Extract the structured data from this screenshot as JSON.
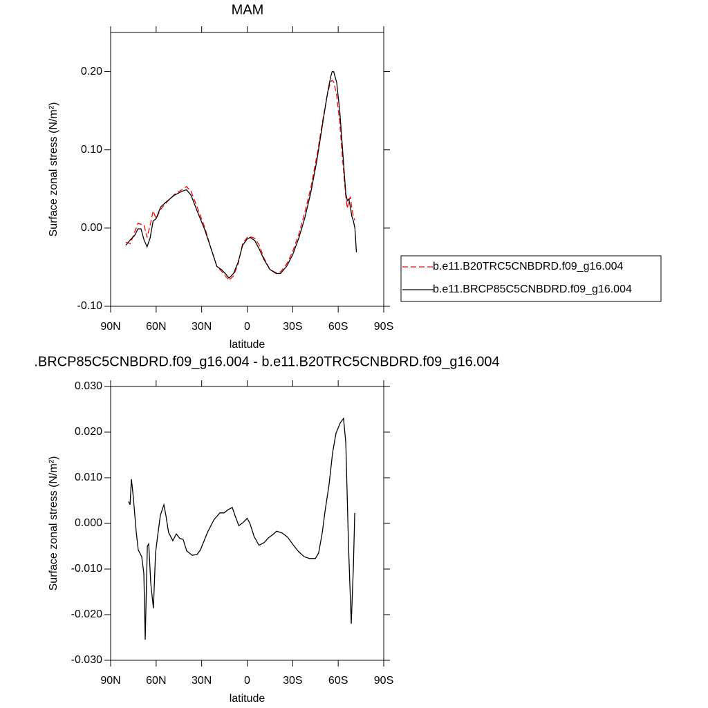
{
  "chart_data": [
    {
      "type": "line",
      "title": "MAM",
      "x_label": "latitude",
      "y_label": "Surface zonal stress (N/m²)",
      "xlim": [
        90,
        -90
      ],
      "xticks": [
        {
          "value": 90,
          "label": "90N"
        },
        {
          "value": 60,
          "label": "60N"
        },
        {
          "value": 30,
          "label": "30N"
        },
        0,
        {
          "value": -30,
          "label": "30S"
        },
        {
          "value": -60,
          "label": "60S"
        },
        {
          "value": -90,
          "label": "90S"
        }
      ],
      "ylim": [
        -0.1,
        0.25
      ],
      "yticks": [
        {
          "value": -0.1,
          "label": "-0.10"
        },
        {
          "value": 0,
          "label": "0.00"
        },
        {
          "value": 0.1,
          "label": "0.10"
        },
        {
          "value": 0.2,
          "label": "0.20"
        }
      ],
      "legend": "right",
      "x": [
        80,
        77,
        74,
        72,
        70,
        68,
        66,
        64,
        62,
        60,
        57,
        53,
        48,
        43,
        40,
        37,
        33,
        28,
        24,
        20,
        17,
        14,
        12,
        9,
        6,
        3,
        0,
        -2,
        -5,
        -8,
        -11,
        -15,
        -19,
        -22,
        -26,
        -30,
        -34,
        -38,
        -42,
        -46,
        -50,
        -53,
        -55,
        -56,
        -57,
        -59,
        -61,
        -63,
        -65,
        -66,
        -67,
        -68,
        -69,
        -70,
        -71,
        -72
      ],
      "series": [
        {
          "name": "b.e11.B20TRC5CNBDRD.f09_g16.004",
          "color": "#ff0000",
          "line_style": "dashed",
          "values": [
            -0.018,
            -0.02,
            -0.004,
            0.006,
            0.005,
            0.004,
            -0.012,
            0.003,
            0.022,
            0.012,
            0.024,
            0.033,
            0.043,
            0.049,
            0.053,
            0.047,
            0.027,
            0.001,
            -0.025,
            -0.049,
            -0.055,
            -0.062,
            -0.067,
            -0.061,
            -0.046,
            -0.02,
            -0.012,
            -0.011,
            -0.013,
            -0.022,
            -0.038,
            -0.053,
            -0.057,
            -0.056,
            -0.046,
            -0.03,
            -0.008,
            0.02,
            0.052,
            0.093,
            0.14,
            0.172,
            0.187,
            0.189,
            0.187,
            0.17,
            0.135,
            0.085,
            0.04,
            0.025,
            0.035,
            0.04,
            0.025,
            0.015,
            0.01,
            null
          ]
        },
        {
          "name": "b.e11.BRCP85C5CNBDRD.f09_g16.004",
          "color": "#000000",
          "line_style": "solid",
          "values": [
            -0.022,
            -0.015,
            -0.009,
            -0.001,
            -0.001,
            -0.015,
            -0.024,
            -0.013,
            0.009,
            0.012,
            0.027,
            0.034,
            0.042,
            0.047,
            0.049,
            0.042,
            0.022,
            -0.002,
            -0.025,
            -0.049,
            -0.053,
            -0.059,
            -0.064,
            -0.058,
            -0.044,
            -0.022,
            -0.014,
            -0.012,
            -0.016,
            -0.027,
            -0.04,
            -0.053,
            -0.058,
            -0.058,
            -0.049,
            -0.034,
            -0.013,
            0.013,
            0.046,
            0.087,
            0.137,
            0.173,
            0.193,
            0.2,
            0.2,
            0.186,
            0.15,
            0.097,
            0.044,
            0.035,
            0.037,
            0.027,
            0.015,
            0.009,
            0.0,
            -0.031
          ]
        }
      ]
    },
    {
      "type": "line",
      "title": ".BRCP85C5CNBDRD.f09_g16.004 - b.e11.B20TRC5CNBDRD.f09_g16.004",
      "x_label": "latitude",
      "y_label": "Surface zonal stress (N/m²)",
      "xlim": [
        90,
        -90
      ],
      "xticks": [
        {
          "value": 90,
          "label": "90N"
        },
        {
          "value": 60,
          "label": "60N"
        },
        {
          "value": 30,
          "label": "30N"
        },
        0,
        {
          "value": -30,
          "label": "30S"
        },
        {
          "value": -60,
          "label": "60S"
        },
        {
          "value": -90,
          "label": "90S"
        }
      ],
      "ylim": [
        -0.03,
        0.03
      ],
      "yticks": [
        {
          "value": -0.03,
          "label": "-0.030"
        },
        {
          "value": -0.02,
          "label": "-0.020"
        },
        {
          "value": -0.01,
          "label": "-0.010"
        },
        {
          "value": 0,
          "label": "0.000"
        },
        {
          "value": 0.01,
          "label": "0.010"
        },
        {
          "value": 0.02,
          "label": "0.020"
        },
        {
          "value": 0.03,
          "label": "0.030"
        }
      ],
      "x": [
        78.2,
        77.2,
        76.3,
        75,
        73.1,
        71.8,
        69.5,
        68.1,
        67.2,
        65.8,
        64.9,
        63.5,
        61.8,
        60.4,
        59,
        57.2,
        54.9,
        53.6,
        51.8,
        49,
        46.7,
        44.4,
        42.2,
        39.9,
        36.2,
        33,
        30.8,
        26.2,
        21.9,
        18,
        15.3,
        12.6,
        9.8,
        8.1,
        5.5,
        2.7,
        0,
        -1.8,
        -4.6,
        -7.8,
        -11.2,
        -13.9,
        -17.1,
        -19.4,
        -23,
        -26.6,
        -30.3,
        -33.9,
        -37.6,
        -41.2,
        -44.9,
        -47.1,
        -49.5,
        -51.3,
        -54,
        -56.3,
        -58.5,
        -61.3,
        -63.5,
        -65,
        -66.8,
        -68.6,
        -70,
        -70.9
      ],
      "series": [
        {
          "color": "#000000",
          "line_style": "solid",
          "values": [
            0.0048,
            0.0041,
            0.0097,
            0.0056,
            -0.002,
            -0.0058,
            -0.0073,
            -0.011,
            -0.0255,
            -0.005,
            -0.0045,
            -0.0133,
            -0.0186,
            -0.0065,
            -0.0027,
            0.0018,
            0.0041,
            0.0018,
            -0.002,
            -0.0038,
            -0.0023,
            -0.0033,
            -0.0035,
            -0.006,
            -0.007,
            -0.0068,
            -0.0058,
            -0.002,
            0.0008,
            0.0023,
            0.0023,
            0.003,
            0.0035,
            0.0018,
            -0.0005,
            0.0002,
            0.0011,
            0,
            -0.0029,
            -0.0048,
            -0.0042,
            -0.0032,
            -0.0024,
            -0.0017,
            -0.0021,
            -0.003,
            -0.0047,
            -0.0062,
            -0.0073,
            -0.0077,
            -0.0077,
            -0.0065,
            -0.002,
            0.0026,
            0.0086,
            0.0155,
            0.0197,
            0.022,
            0.023,
            0.0177,
            -0.005,
            -0.022,
            -0.0095,
            0.0023
          ]
        }
      ]
    }
  ]
}
